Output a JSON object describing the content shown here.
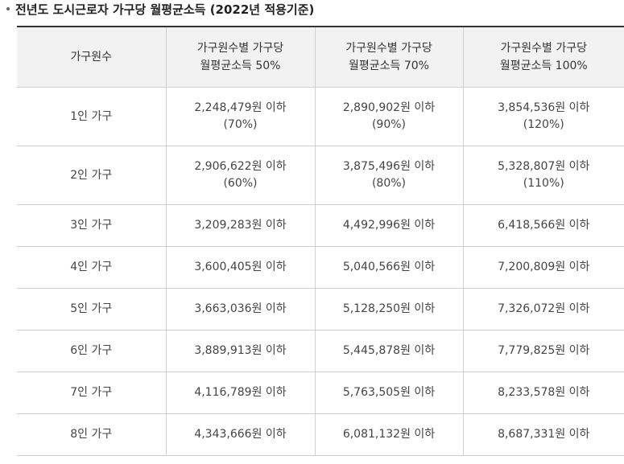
{
  "title": "전년도 도시근로자 가구당 월평균소득 (2022년 적용기준)",
  "headers": [
    [
      "가구원수"
    ],
    [
      "가구원수별 가구당",
      "월평균소득 50%"
    ],
    [
      "가구원수별 가구당",
      "월평균소득 70%"
    ],
    [
      "가구원수별 가구당",
      "월평균소득 100%"
    ]
  ],
  "rows": [
    {
      "size": "1인 가구",
      "cells": [
        [
          "2,248,479원 이하",
          "(70%)"
        ],
        [
          "2,890,902원 이하",
          "(90%)"
        ],
        [
          "3,854,536원 이하",
          "(120%)"
        ]
      ]
    },
    {
      "size": "2인 가구",
      "cells": [
        [
          "2,906,622원 이하",
          "(60%)"
        ],
        [
          "3,875,496원 이하",
          "(80%)"
        ],
        [
          "5,328,807원 이하",
          "(110%)"
        ]
      ]
    },
    {
      "size": "3인 가구",
      "cells": [
        [
          "3,209,283원 이하"
        ],
        [
          "4,492,996원 이하"
        ],
        [
          "6,418,566원 이하"
        ]
      ]
    },
    {
      "size": "4인 가구",
      "cells": [
        [
          "3,600,405원 이하"
        ],
        [
          "5,040,566원 이하"
        ],
        [
          "7,200,809원 이하"
        ]
      ]
    },
    {
      "size": "5인 가구",
      "cells": [
        [
          "3,663,036원 이하"
        ],
        [
          "5,128,250원 이하"
        ],
        [
          "7,326,072원 이하"
        ]
      ]
    },
    {
      "size": "6인 가구",
      "cells": [
        [
          "3,889,913원 이하"
        ],
        [
          "5,445,878원 이하"
        ],
        [
          "7,779,825원 이하"
        ]
      ]
    },
    {
      "size": "7인 가구",
      "cells": [
        [
          "4,116,789원 이하"
        ],
        [
          "5,763,505원 이하"
        ],
        [
          "8,233,578원 이하"
        ]
      ]
    },
    {
      "size": "8인 가구",
      "cells": [
        [
          "4,343,666원 이하"
        ],
        [
          "6,081,132원 이하"
        ],
        [
          "8,687,331원 이하"
        ]
      ]
    }
  ]
}
